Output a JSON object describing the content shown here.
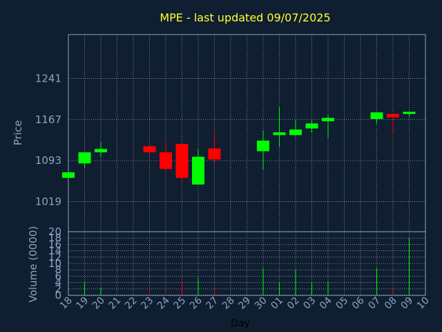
{
  "chart_data": {
    "type": "candlestick",
    "title": "MPE - last updated 09/07/2025",
    "xlabel": "Day",
    "ylabel": "Price",
    "volume_label": "Volume (0000)",
    "colors": {
      "background": "#0f1e30",
      "plot_border": "#8aa6c4",
      "grid": "#ffffff",
      "up": "#00ff00",
      "down": "#ff0000",
      "title": "#ffff33"
    },
    "price_axis": {
      "ylim": [
        965,
        1320
      ],
      "ticks": [
        1019,
        1093,
        1167,
        1241
      ]
    },
    "volume_axis": {
      "ylim": [
        0,
        20
      ],
      "ticks": [
        0,
        2,
        4,
        6,
        8,
        10,
        12,
        14,
        16,
        18,
        20
      ]
    },
    "x_ticks": [
      "18",
      "19",
      "20",
      "21",
      "22",
      "23",
      "24",
      "25",
      "26",
      "27",
      "28",
      "29",
      "30",
      "01",
      "02",
      "03",
      "04",
      "05",
      "06",
      "07",
      "08",
      "09",
      "10"
    ],
    "candles": [
      {
        "day": "18",
        "open": 1062,
        "close": 1072,
        "high": 1072,
        "low": 1062,
        "volume": 0
      },
      {
        "day": "19",
        "open": 1088,
        "close": 1108,
        "high": 1108,
        "low": 1080,
        "volume": 4
      },
      {
        "day": "20",
        "open": 1108,
        "close": 1114,
        "high": 1127,
        "low": 1100,
        "volume": 2.5
      },
      {
        "day": "23",
        "open": 1119,
        "close": 1108,
        "high": 1119,
        "low": 1103,
        "volume": 2
      },
      {
        "day": "24",
        "open": 1108,
        "close": 1078,
        "high": 1127,
        "low": 1073,
        "volume": 1.5
      },
      {
        "day": "25",
        "open": 1123,
        "close": 1062,
        "high": 1123,
        "low": 1052,
        "volume": 4.5
      },
      {
        "day": "26",
        "open": 1050,
        "close": 1100,
        "high": 1115,
        "low": 1050,
        "volume": 5.5
      },
      {
        "day": "27",
        "open": 1115,
        "close": 1095,
        "high": 1144,
        "low": 1086,
        "volume": 2.5
      },
      {
        "day": "30",
        "open": 1110,
        "close": 1129,
        "high": 1147,
        "low": 1077,
        "volume": 8.5
      },
      {
        "day": "01",
        "open": 1139,
        "close": 1144,
        "high": 1190,
        "low": 1118,
        "volume": 4
      },
      {
        "day": "02",
        "open": 1139,
        "close": 1149,
        "high": 1167,
        "low": 1137,
        "volume": 8
      },
      {
        "day": "03",
        "open": 1151,
        "close": 1160,
        "high": 1165,
        "low": 1143,
        "volume": 4
      },
      {
        "day": "04",
        "open": 1164,
        "close": 1170,
        "high": 1176,
        "low": 1134,
        "volume": 4.5
      },
      {
        "day": "07",
        "open": 1168,
        "close": 1180,
        "high": 1180,
        "low": 1160,
        "volume": 8.5
      },
      {
        "day": "08",
        "open": 1177,
        "close": 1171,
        "high": 1177,
        "low": 1139,
        "volume": 2.5
      },
      {
        "day": "09",
        "open": 1177,
        "close": 1181,
        "high": 1181,
        "low": 1172,
        "volume": 18
      }
    ]
  }
}
